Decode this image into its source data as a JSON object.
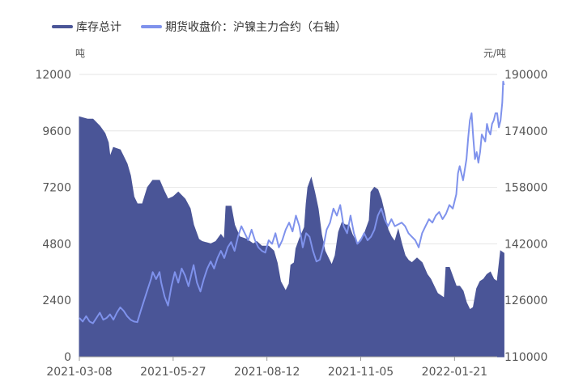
{
  "chart_data": {
    "type": "area+line",
    "legend_position": "top-left",
    "grid": {
      "horizontal": true,
      "vertical": false
    },
    "x_tick_labels": [
      "2021-03-08",
      "2021-05-27",
      "2021-08-12",
      "2021-11-05",
      "2022-01-21"
    ],
    "x_tick_positions": [
      0,
      55,
      110,
      165,
      220
    ],
    "x_range": [
      0,
      245
    ],
    "left_axis": {
      "unit": "吨",
      "min": 0,
      "max": 12000,
      "ticks": [
        0,
        2400,
        4800,
        7200,
        9600,
        12000
      ]
    },
    "right_axis": {
      "unit": "元/吨",
      "min": 110000,
      "max": 190000,
      "ticks": [
        110000,
        126000,
        142000,
        158000,
        174000,
        190000
      ]
    },
    "colors": {
      "inventory": "#4a5597",
      "price": "#7f92ec",
      "grid": "#e6e6e6",
      "axis": "#999999"
    },
    "series": [
      {
        "name": "库存总计",
        "axis": "left",
        "style": "area",
        "points": [
          [
            0,
            10200
          ],
          [
            5,
            10100
          ],
          [
            8,
            10100
          ],
          [
            12,
            9800
          ],
          [
            15,
            9500
          ],
          [
            17,
            9100
          ],
          [
            18,
            8500
          ],
          [
            20,
            8900
          ],
          [
            24,
            8800
          ],
          [
            26,
            8500
          ],
          [
            28,
            8200
          ],
          [
            30,
            7700
          ],
          [
            32,
            6800
          ],
          [
            34,
            6500
          ],
          [
            37,
            6500
          ],
          [
            40,
            7200
          ],
          [
            43,
            7500
          ],
          [
            47,
            7500
          ],
          [
            50,
            7000
          ],
          [
            52,
            6700
          ],
          [
            55,
            6800
          ],
          [
            58,
            7000
          ],
          [
            62,
            6700
          ],
          [
            65,
            6300
          ],
          [
            67,
            5600
          ],
          [
            70,
            5000
          ],
          [
            72,
            4900
          ],
          [
            77,
            4800
          ],
          [
            80,
            4900
          ],
          [
            83,
            5200
          ],
          [
            85,
            5000
          ],
          [
            86,
            6400
          ],
          [
            89,
            6400
          ],
          [
            91,
            5600
          ],
          [
            94,
            5100
          ],
          [
            98,
            5000
          ],
          [
            102,
            4800
          ],
          [
            104,
            4900
          ],
          [
            107,
            4700
          ],
          [
            111,
            4700
          ],
          [
            114,
            4500
          ],
          [
            116,
            4000
          ],
          [
            118,
            3200
          ],
          [
            121,
            2800
          ],
          [
            123,
            3100
          ],
          [
            124,
            3900
          ],
          [
            126,
            4000
          ],
          [
            127,
            4600
          ],
          [
            129,
            5000
          ],
          [
            132,
            5500
          ],
          [
            133,
            6500
          ],
          [
            134,
            7200
          ],
          [
            136,
            7600
          ],
          [
            138,
            7000
          ],
          [
            140,
            6300
          ],
          [
            142,
            5200
          ],
          [
            144,
            4500
          ],
          [
            146,
            4200
          ],
          [
            148,
            3900
          ],
          [
            150,
            4300
          ],
          [
            152,
            5300
          ],
          [
            154,
            5700
          ],
          [
            156,
            5600
          ],
          [
            158,
            5600
          ],
          [
            160,
            5200
          ],
          [
            163,
            4800
          ],
          [
            165,
            5000
          ],
          [
            167,
            5200
          ],
          [
            170,
            5800
          ],
          [
            171,
            7000
          ],
          [
            173,
            7200
          ],
          [
            175,
            7100
          ],
          [
            177,
            6700
          ],
          [
            179,
            6100
          ],
          [
            181,
            5400
          ],
          [
            183,
            5100
          ],
          [
            185,
            4900
          ],
          [
            187,
            5400
          ],
          [
            189,
            4800
          ],
          [
            191,
            4300
          ],
          [
            193,
            4100
          ],
          [
            195,
            4000
          ],
          [
            198,
            4200
          ],
          [
            201,
            4000
          ],
          [
            204,
            3500
          ],
          [
            206,
            3300
          ],
          [
            208,
            3000
          ],
          [
            210,
            2700
          ],
          [
            212,
            2600
          ],
          [
            214,
            2500
          ],
          [
            215,
            3800
          ],
          [
            217,
            3800
          ],
          [
            219,
            3400
          ],
          [
            221,
            3000
          ],
          [
            223,
            3000
          ],
          [
            225,
            2800
          ],
          [
            227,
            2300
          ],
          [
            229,
            2000
          ],
          [
            231,
            2100
          ],
          [
            233,
            2900
          ],
          [
            235,
            3200
          ],
          [
            237,
            3300
          ],
          [
            239,
            3500
          ],
          [
            241,
            3600
          ],
          [
            243,
            3300
          ],
          [
            245,
            3200
          ],
          [
            247,
            4500
          ],
          [
            249,
            4400
          ]
        ]
      },
      {
        "name": "期货收盘价：沪镍主力合约（右轴）",
        "axis": "right",
        "style": "line",
        "points": [
          [
            0,
            121000
          ],
          [
            2,
            120000
          ],
          [
            4,
            121500
          ],
          [
            6,
            120000
          ],
          [
            8,
            119500
          ],
          [
            10,
            121000
          ],
          [
            12,
            122500
          ],
          [
            14,
            120500
          ],
          [
            16,
            121000
          ],
          [
            18,
            122000
          ],
          [
            20,
            120500
          ],
          [
            22,
            122500
          ],
          [
            24,
            124000
          ],
          [
            26,
            123000
          ],
          [
            28,
            121500
          ],
          [
            30,
            120500
          ],
          [
            32,
            120000
          ],
          [
            34,
            119800
          ],
          [
            36,
            123000
          ],
          [
            38,
            126000
          ],
          [
            40,
            129000
          ],
          [
            42,
            132000
          ],
          [
            43,
            134000
          ],
          [
            45,
            132000
          ],
          [
            47,
            134000
          ],
          [
            48,
            131000
          ],
          [
            50,
            127000
          ],
          [
            52,
            124500
          ],
          [
            54,
            130000
          ],
          [
            56,
            134000
          ],
          [
            58,
            131000
          ],
          [
            60,
            135000
          ],
          [
            62,
            133000
          ],
          [
            64,
            130000
          ],
          [
            66,
            134000
          ],
          [
            67,
            136000
          ],
          [
            69,
            131000
          ],
          [
            71,
            128500
          ],
          [
            73,
            132000
          ],
          [
            75,
            135000
          ],
          [
            77,
            137000
          ],
          [
            79,
            135000
          ],
          [
            81,
            138000
          ],
          [
            83,
            140000
          ],
          [
            85,
            138000
          ],
          [
            87,
            141000
          ],
          [
            89,
            142500
          ],
          [
            91,
            140000
          ],
          [
            93,
            144000
          ],
          [
            95,
            147000
          ],
          [
            97,
            145000
          ],
          [
            99,
            143000
          ],
          [
            101,
            146000
          ],
          [
            103,
            143000
          ],
          [
            105,
            141000
          ],
          [
            107,
            140000
          ],
          [
            109,
            139500
          ],
          [
            111,
            143000
          ],
          [
            113,
            142000
          ],
          [
            115,
            145000
          ],
          [
            117,
            141000
          ],
          [
            119,
            143000
          ],
          [
            121,
            146000
          ],
          [
            123,
            148000
          ],
          [
            125,
            145500
          ],
          [
            127,
            150000
          ],
          [
            129,
            147000
          ],
          [
            131,
            141000
          ],
          [
            133,
            145000
          ],
          [
            135,
            144000
          ],
          [
            137,
            140000
          ],
          [
            139,
            137000
          ],
          [
            141,
            137500
          ],
          [
            143,
            141000
          ],
          [
            145,
            146000
          ],
          [
            147,
            148000
          ],
          [
            149,
            152000
          ],
          [
            151,
            150000
          ],
          [
            153,
            153000
          ],
          [
            155,
            147000
          ],
          [
            157,
            145000
          ],
          [
            159,
            150000
          ],
          [
            161,
            145000
          ],
          [
            163,
            142000
          ],
          [
            165,
            143000
          ],
          [
            167,
            145000
          ],
          [
            169,
            143000
          ],
          [
            171,
            144000
          ],
          [
            173,
            146000
          ],
          [
            175,
            150000
          ],
          [
            177,
            152000
          ],
          [
            179,
            149000
          ],
          [
            181,
            147000
          ],
          [
            183,
            149000
          ],
          [
            185,
            147000
          ],
          [
            187,
            147500
          ],
          [
            189,
            148000
          ],
          [
            191,
            147000
          ],
          [
            193,
            145000
          ],
          [
            195,
            144000
          ],
          [
            197,
            143000
          ],
          [
            199,
            141000
          ],
          [
            201,
            145000
          ],
          [
            203,
            147000
          ],
          [
            205,
            149000
          ],
          [
            207,
            148000
          ],
          [
            209,
            150000
          ],
          [
            211,
            151000
          ],
          [
            213,
            149000
          ],
          [
            215,
            150500
          ],
          [
            217,
            153000
          ],
          [
            219,
            152000
          ],
          [
            221,
            156000
          ],
          [
            222,
            162000
          ],
          [
            223,
            164000
          ],
          [
            225,
            160000
          ],
          [
            227,
            166000
          ],
          [
            228,
            172000
          ],
          [
            229,
            177000
          ],
          [
            230,
            179000
          ],
          [
            231,
            172000
          ],
          [
            232,
            166000
          ],
          [
            233,
            168000
          ],
          [
            234,
            165000
          ],
          [
            235,
            168000
          ],
          [
            236,
            173000
          ],
          [
            237,
            172000
          ],
          [
            238,
            171000
          ],
          [
            239,
            176000
          ],
          [
            240,
            174000
          ],
          [
            241,
            173000
          ],
          [
            242,
            176000
          ],
          [
            243,
            177000
          ],
          [
            244,
            179000
          ],
          [
            245,
            179000
          ],
          [
            246,
            175000
          ],
          [
            247,
            177000
          ],
          [
            248,
            182000
          ],
          [
            248.5,
            188000
          ],
          [
            249,
            187000
          ]
        ]
      }
    ]
  }
}
